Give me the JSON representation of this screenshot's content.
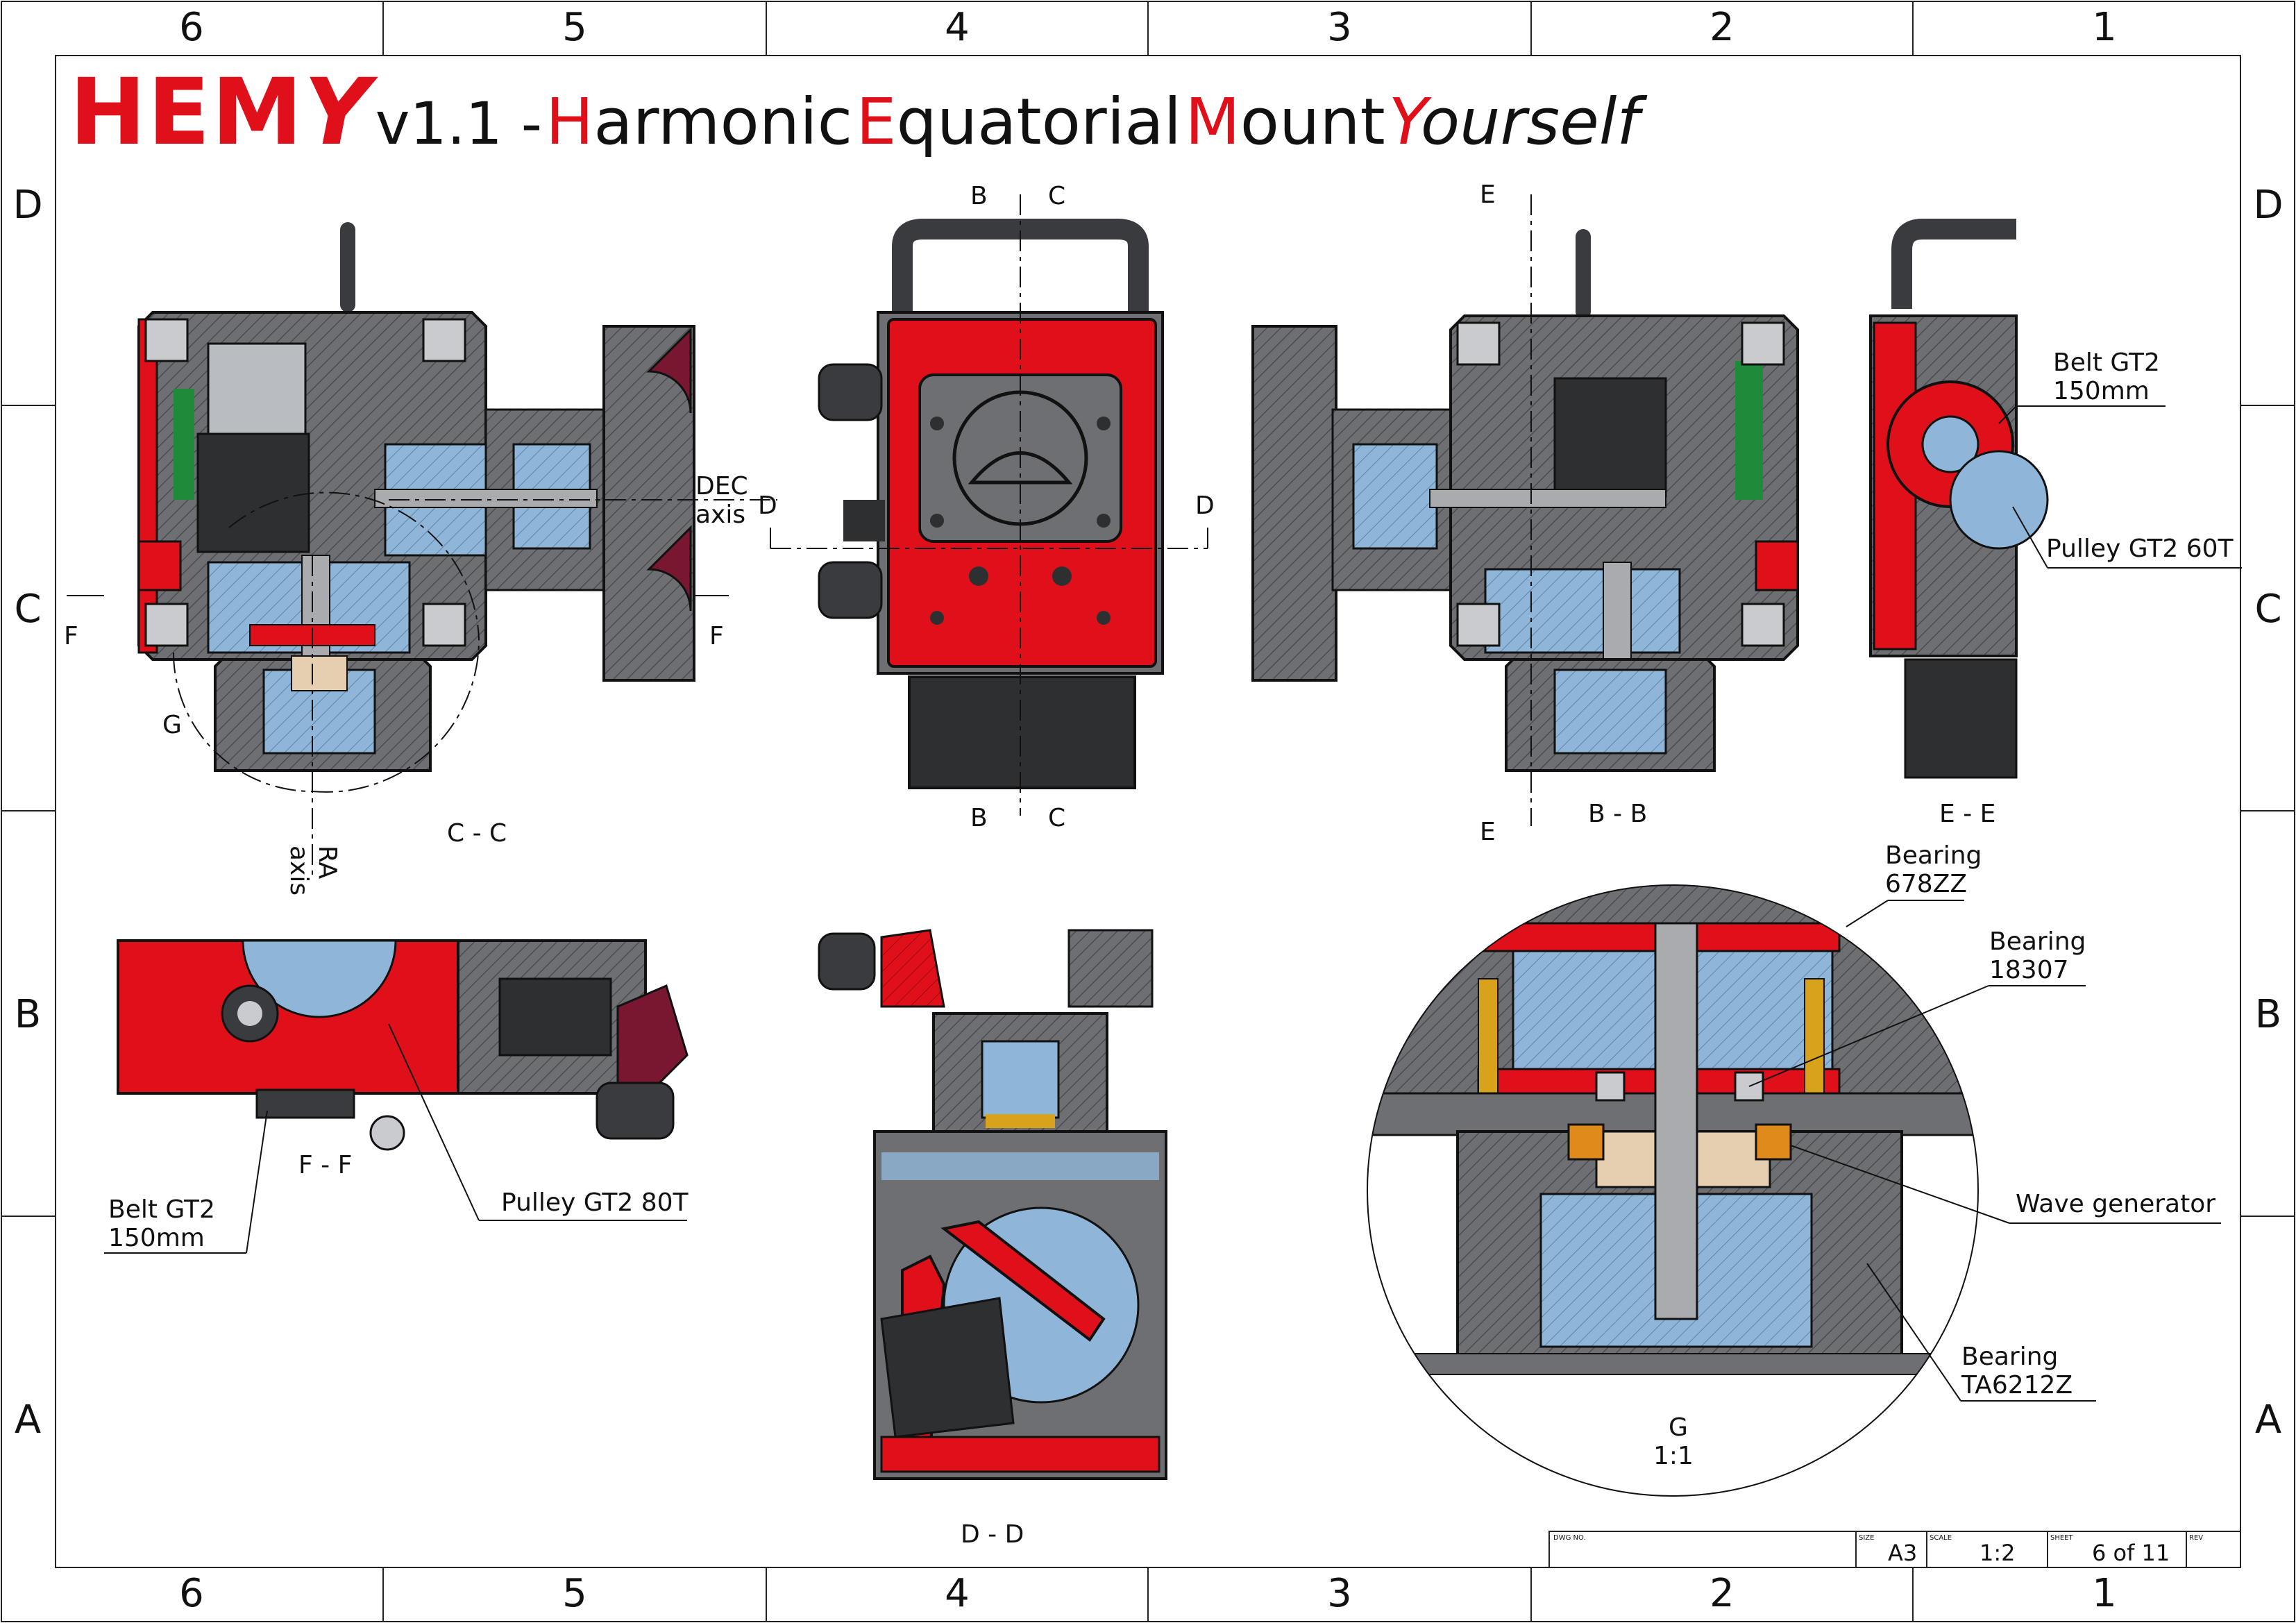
{
  "title": {
    "hemy_he": "HEM",
    "hemy_y": "Y",
    "version": "v1.1 -",
    "w1_cap": "H",
    "w1_rest": "armonic",
    "w2_cap": "E",
    "w2_rest": "quatorial",
    "w3_cap": "M",
    "w3_rest": "ount",
    "w4_cap": "Y",
    "w4_rest": "ourself"
  },
  "zones": {
    "columns": [
      "6",
      "5",
      "4",
      "3",
      "2",
      "1"
    ],
    "rows": [
      "D",
      "C",
      "B",
      "A"
    ]
  },
  "views": {
    "cc": "C - C",
    "bb": "B - B",
    "ee": "E - E",
    "ff": "F - F",
    "dd": "D - D",
    "g_name": "G",
    "g_scale": "1:1"
  },
  "section_marks": {
    "b": "B",
    "c": "C",
    "d": "D",
    "e": "E",
    "f": "F",
    "g": "G"
  },
  "axes": {
    "dec_line1": "DEC",
    "dec_line2": "axis",
    "ra_line1": "RA",
    "ra_line2": "axis"
  },
  "callouts": {
    "belt_ee_1": "Belt GT2",
    "belt_ee_2": "150mm",
    "pulley_60": "Pulley GT2 60T",
    "belt_ff_1": "Belt GT2",
    "belt_ff_2": "150mm",
    "pulley_80": "Pulley GT2 80T",
    "bearing1_1": "Bearing",
    "bearing1_2": "678ZZ",
    "bearing2_1": "Bearing",
    "bearing2_2": "18307",
    "wave": "Wave generator",
    "bearing3_1": "Bearing",
    "bearing3_2": "TA6212Z"
  },
  "title_block": {
    "dwg_label": "DWG NO.",
    "size_label": "SIZE",
    "size": "A3",
    "scale_label": "SCALE",
    "scale": "1:2",
    "sheet_label": "SHEET",
    "sheet": "6 of 11",
    "rev_label": "REV"
  },
  "colors": {
    "red": "#e0101a",
    "grey": "#6d6f73",
    "dark": "#3a3b3e",
    "blue": "#8fb6d8",
    "gold": "#d9a21b",
    "maroon": "#7a1730"
  }
}
